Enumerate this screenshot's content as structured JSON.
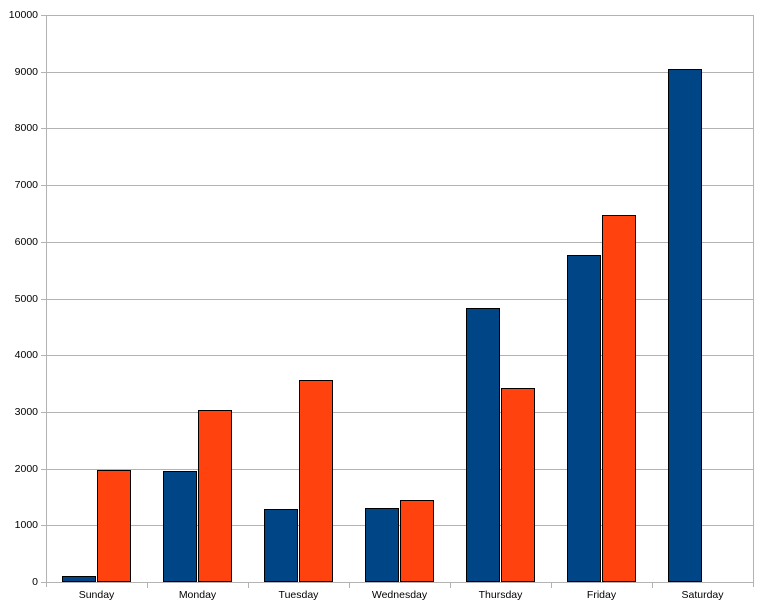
{
  "chart_data": {
    "type": "bar",
    "title": "",
    "xlabel": "",
    "ylabel": "",
    "categories": [
      "Sunday",
      "Monday",
      "Tuesday",
      "Wednesday",
      "Thursday",
      "Friday",
      "Saturday"
    ],
    "series": [
      {
        "color": "#004586",
        "values": [
          100,
          1950,
          1290,
          1300,
          4840,
          5770,
          9050
        ]
      },
      {
        "color": "#FF420E",
        "values": [
          1980,
          3040,
          3570,
          1440,
          3420,
          6480,
          null
        ]
      }
    ],
    "ylim": [
      0,
      10000
    ],
    "y_ticks": [
      0,
      1000,
      2000,
      3000,
      4000,
      5000,
      6000,
      7000,
      8000,
      9000,
      10000
    ],
    "grid": true,
    "legend": "none",
    "bar_border_color": "#000000",
    "grid_color": "#b3b3b3",
    "axis_color": "#b3b3b3",
    "text_color": "#000000",
    "background_color": "#ffffff"
  }
}
